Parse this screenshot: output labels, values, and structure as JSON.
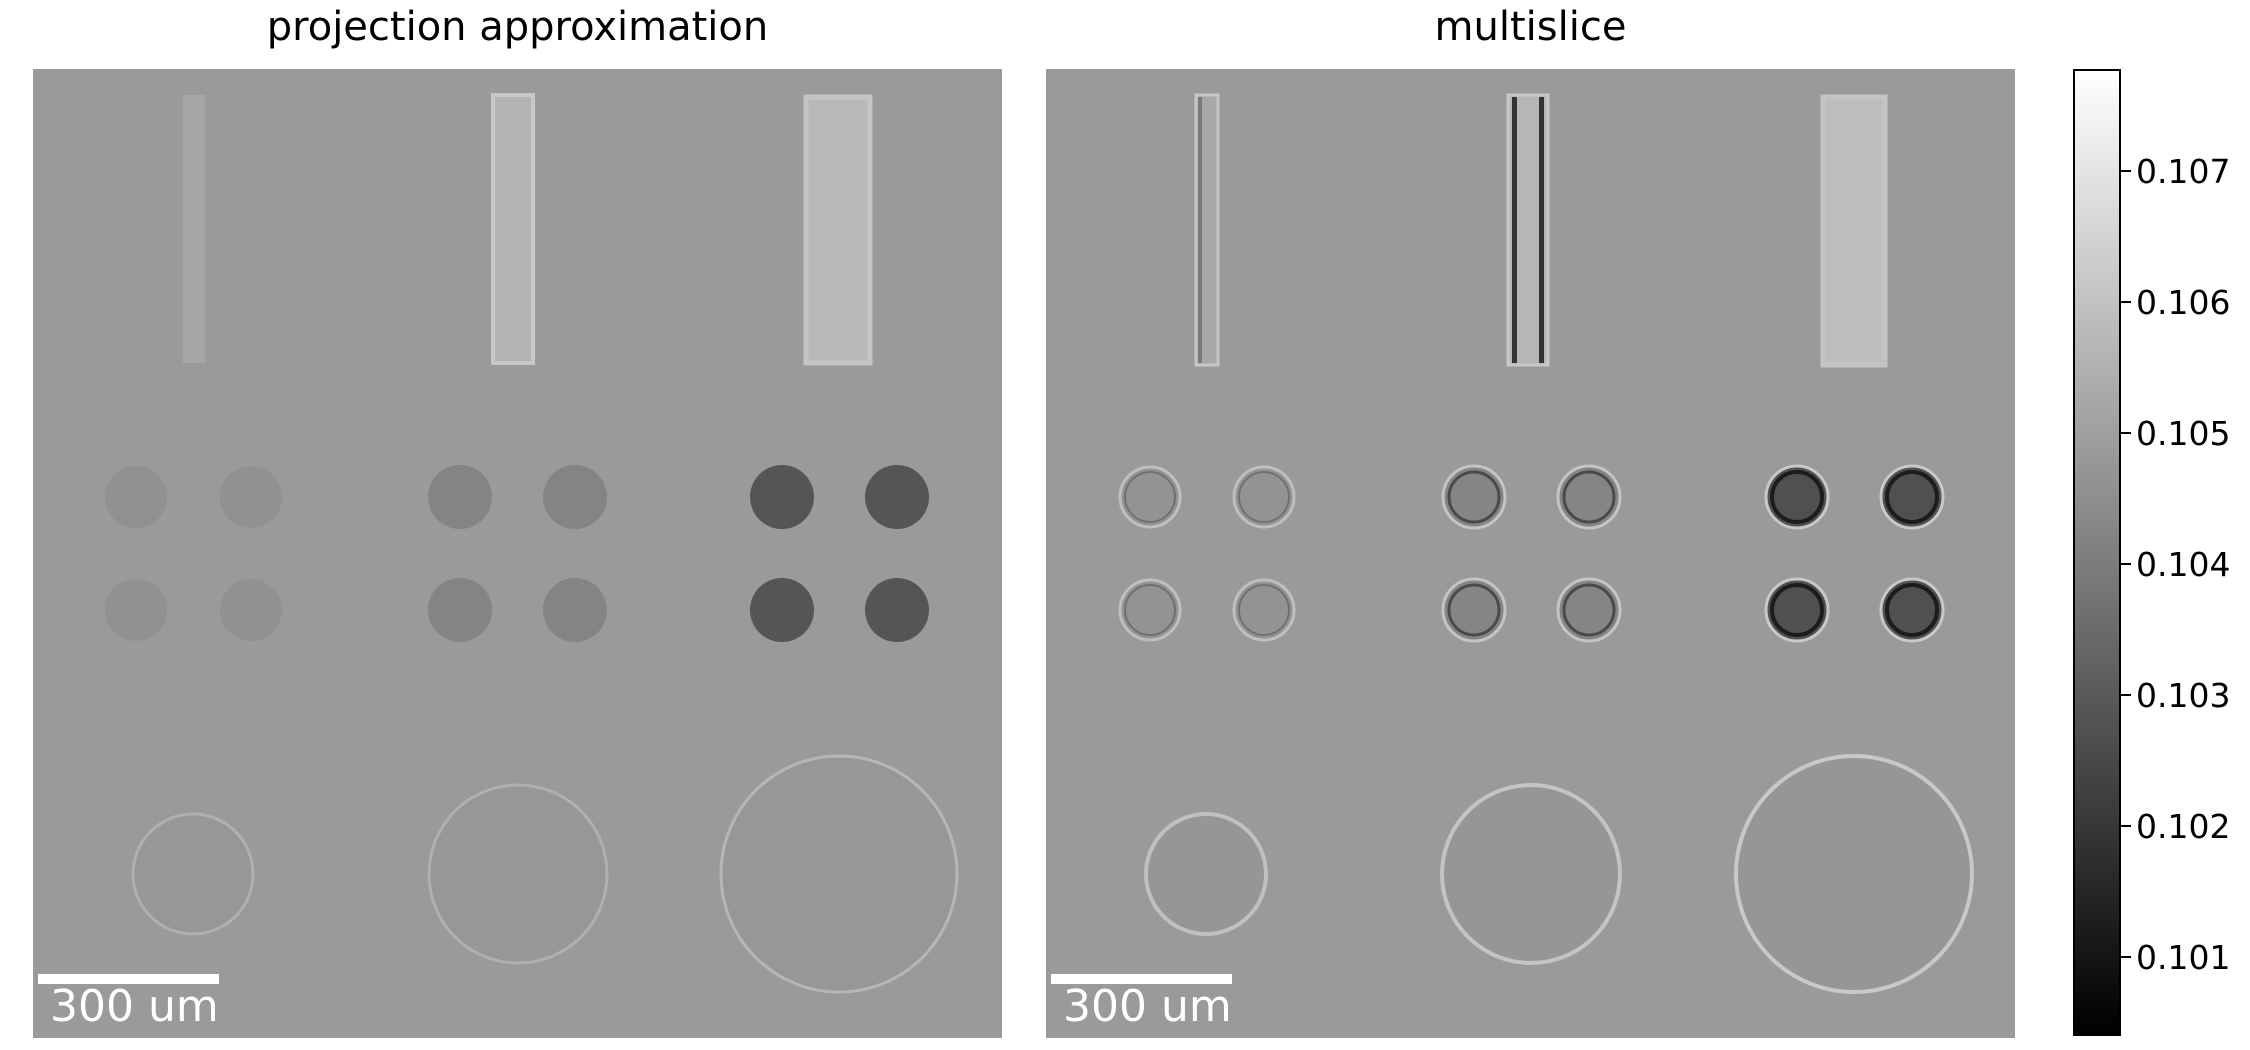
{
  "panels": [
    {
      "title": "projection approximation",
      "scalebar_label": "300 um"
    },
    {
      "title": "multislice",
      "scalebar_label": "300 um"
    }
  ],
  "colorbar": {
    "ticks": [
      "0.107",
      "0.106",
      "0.105",
      "0.104",
      "0.103",
      "0.102",
      "0.101"
    ],
    "colormap": "gray",
    "range": [
      0.1004,
      0.1078
    ]
  },
  "colors": {
    "background_gray": "#9a9a9a",
    "scalebar": "#ffffff"
  }
}
